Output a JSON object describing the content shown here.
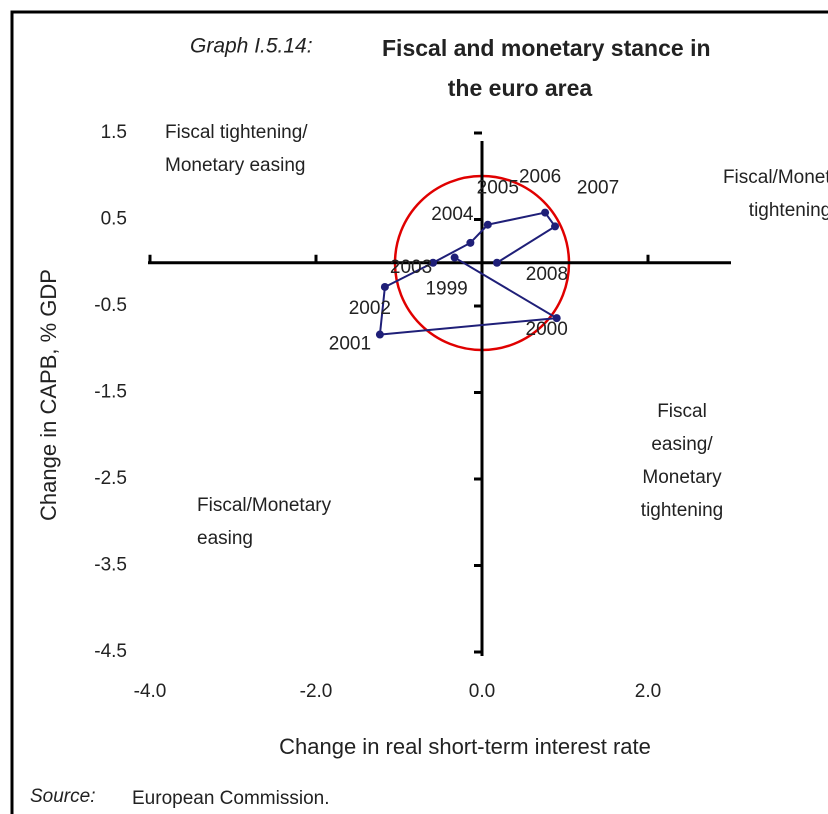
{
  "chart_data": {
    "type": "line",
    "title_prefix": "Graph I.5.14:",
    "title": [
      "Fiscal and monetary stance in",
      "the euro area"
    ],
    "xlabel": "Change in real short-term interest rate",
    "ylabel": "Change in CAPB, % GDP",
    "xlim": [
      -4,
      3
    ],
    "xticks": [
      {
        "value": -4,
        "label": "-4.0"
      },
      {
        "value": -2,
        "label": "-2.0"
      },
      {
        "value": 0,
        "label": "0.0"
      },
      {
        "value": 2,
        "label": "2.0"
      }
    ],
    "ylim": [
      -4.5,
      1.5
    ],
    "yticks": [
      -4.5,
      -3.5,
      -2.5,
      -1.5,
      -0.5,
      0.5,
      1.5
    ],
    "series": [
      {
        "color": "#1f1f78",
        "labels": [
          "1999",
          "2000",
          "2001",
          "2002",
          "2003",
          "2004",
          "2005",
          "2006",
          "2007",
          "2008"
        ],
        "x": [
          -0.33,
          0.9,
          -1.23,
          -1.17,
          -0.59,
          -0.14,
          0.07,
          0.76,
          0.88,
          0.18
        ],
        "values": [
          0.06,
          -0.64,
          -0.83,
          -0.28,
          0.0,
          0.23,
          0.44,
          0.58,
          0.42,
          0.0
        ]
      }
    ],
    "annotations": [
      [
        "Fiscal tightening/",
        "Monetary easing"
      ],
      [
        "Fiscal/Monetary",
        "tightening"
      ],
      [
        "Fiscal",
        "easing/",
        "Monetary",
        "tightening"
      ],
      [
        "Fiscal/Monetary",
        "easing"
      ]
    ],
    "source_label": "Source:",
    "source": "European Commission."
  }
}
